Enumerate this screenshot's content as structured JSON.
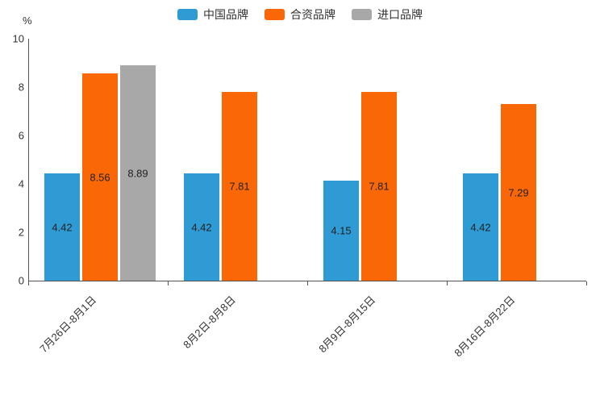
{
  "chart_data": {
    "type": "bar",
    "title": "",
    "ylabel": "%",
    "xlabel": "",
    "ylim": [
      0,
      10
    ],
    "yticks": [
      0,
      2,
      4,
      6,
      8,
      10
    ],
    "grid": false,
    "legend_position": "top",
    "categories": [
      "7月26日-8月1日",
      "8月2日-8月8日",
      "8月9日-8月15日",
      "8月16日-8月22日"
    ],
    "series": [
      {
        "name": "中国品牌",
        "color": "#2E9BD5",
        "values": [
          4.42,
          4.42,
          4.15,
          4.42
        ]
      },
      {
        "name": "合资品牌",
        "color": "#F96707",
        "values": [
          8.56,
          7.81,
          7.81,
          7.29
        ]
      },
      {
        "name": "进口品牌",
        "color": "#A8A8A8",
        "values": [
          8.89,
          null,
          null,
          null
        ]
      }
    ],
    "colors": {
      "axis": "#555555",
      "label_text": "#222222"
    }
  }
}
